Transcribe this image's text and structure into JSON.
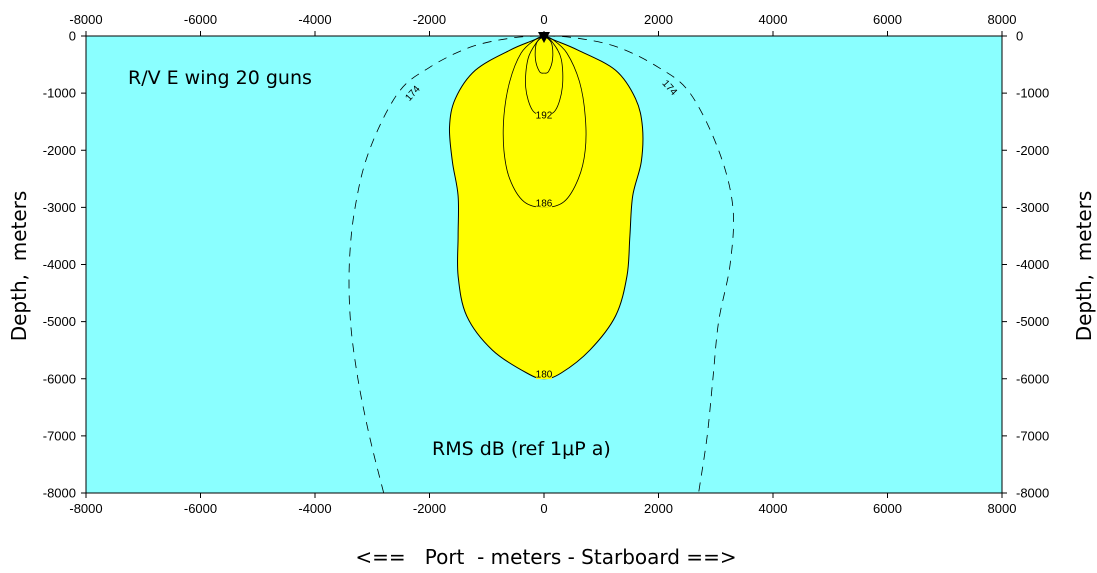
{
  "chart_data": {
    "type": "contour",
    "xlabel": "<==   Port  - meters - Starboard ==>",
    "ylabel_left": "Depth,  meters",
    "ylabel_right": "Depth,  meters",
    "xlim": [
      -8000,
      8000
    ],
    "ylim": [
      -8000,
      0
    ],
    "xticks": [
      -8000,
      -6000,
      -4000,
      -2000,
      0,
      2000,
      4000,
      6000,
      8000
    ],
    "yticks": [
      0,
      -1000,
      -2000,
      -3000,
      -4000,
      -5000,
      -6000,
      -7000,
      -8000
    ],
    "xtick_labels": [
      "-8000",
      "-6000",
      "-4000",
      "-2000",
      "0",
      "2000",
      "4000",
      "6000",
      "8000"
    ],
    "ytick_labels": [
      "0",
      "-1000",
      "-2000",
      "-3000",
      "-4000",
      "-5000",
      "-6000",
      "-7000",
      "-8000"
    ],
    "annotations": [
      "R/V  E wing 20 guns",
      "RMS  dB  (ref 1μP a)"
    ],
    "background_color": "#8affff",
    "fill_color": "#ffff00",
    "source_marker": "triangle-down",
    "contours": [
      {
        "level": "174",
        "style": "dashed",
        "points": [
          [
            -2800,
            -8000
          ],
          [
            -3050,
            -7000
          ],
          [
            -3250,
            -6000
          ],
          [
            -3380,
            -5000
          ],
          [
            -3400,
            -4000
          ],
          [
            -3300,
            -3000
          ],
          [
            -3050,
            -2000
          ],
          [
            -2550,
            -1000
          ],
          [
            -2000,
            -550
          ],
          [
            -1300,
            -200
          ],
          [
            -600,
            -40
          ],
          [
            0,
            0
          ],
          [
            600,
            -40
          ],
          [
            1300,
            -200
          ],
          [
            2000,
            -550
          ],
          [
            2550,
            -1000
          ],
          [
            3050,
            -2000
          ],
          [
            3300,
            -3000
          ],
          [
            3250,
            -4000
          ],
          [
            3050,
            -5000
          ],
          [
            2950,
            -6000
          ],
          [
            2850,
            -7000
          ],
          [
            2700,
            -8000
          ]
        ],
        "label_positions": [
          [
            -2300,
            -1000
          ],
          [
            2200,
            -900
          ]
        ]
      },
      {
        "level": "180",
        "style": "solid-filled",
        "points": [
          [
            0,
            0
          ],
          [
            -200,
            -80
          ],
          [
            -600,
            -250
          ],
          [
            -1200,
            -600
          ],
          [
            -1550,
            -1100
          ],
          [
            -1650,
            -1600
          ],
          [
            -1600,
            -2200
          ],
          [
            -1500,
            -2800
          ],
          [
            -1500,
            -3500
          ],
          [
            -1500,
            -4200
          ],
          [
            -1350,
            -4900
          ],
          [
            -900,
            -5500
          ],
          [
            -300,
            -5900
          ],
          [
            0,
            -6000
          ],
          [
            300,
            -5900
          ],
          [
            800,
            -5500
          ],
          [
            1250,
            -4900
          ],
          [
            1450,
            -4200
          ],
          [
            1500,
            -3500
          ],
          [
            1550,
            -2800
          ],
          [
            1700,
            -2200
          ],
          [
            1720,
            -1600
          ],
          [
            1600,
            -1100
          ],
          [
            1250,
            -600
          ],
          [
            600,
            -250
          ],
          [
            200,
            -80
          ],
          [
            0,
            0
          ]
        ],
        "label_positions": [
          [
            0,
            -5920
          ]
        ]
      },
      {
        "level": "186",
        "style": "solid",
        "points": [
          [
            0,
            0
          ],
          [
            -150,
            -60
          ],
          [
            -400,
            -300
          ],
          [
            -600,
            -800
          ],
          [
            -700,
            -1400
          ],
          [
            -700,
            -2000
          ],
          [
            -600,
            -2500
          ],
          [
            -350,
            -2900
          ],
          [
            0,
            -3000
          ],
          [
            350,
            -2900
          ],
          [
            600,
            -2500
          ],
          [
            720,
            -2000
          ],
          [
            720,
            -1400
          ],
          [
            620,
            -800
          ],
          [
            400,
            -300
          ],
          [
            150,
            -60
          ],
          [
            0,
            0
          ]
        ],
        "label_positions": [
          [
            0,
            -2920
          ]
        ]
      },
      {
        "level": "192",
        "style": "solid",
        "points": [
          [
            0,
            0
          ],
          [
            -120,
            -100
          ],
          [
            -280,
            -400
          ],
          [
            -320,
            -900
          ],
          [
            -200,
            -1300
          ],
          [
            0,
            -1380
          ],
          [
            200,
            -1300
          ],
          [
            320,
            -900
          ],
          [
            300,
            -400
          ],
          [
            140,
            -100
          ],
          [
            0,
            0
          ]
        ],
        "label_positions": [
          [
            0,
            -1380
          ]
        ]
      },
      {
        "level": "",
        "style": "solid",
        "points": [
          [
            0,
            0
          ],
          [
            -130,
            -120
          ],
          [
            -150,
            -400
          ],
          [
            -80,
            -620
          ],
          [
            0,
            -650
          ],
          [
            80,
            -620
          ],
          [
            150,
            -400
          ],
          [
            130,
            -120
          ],
          [
            0,
            0
          ]
        ],
        "label_positions": []
      }
    ]
  }
}
